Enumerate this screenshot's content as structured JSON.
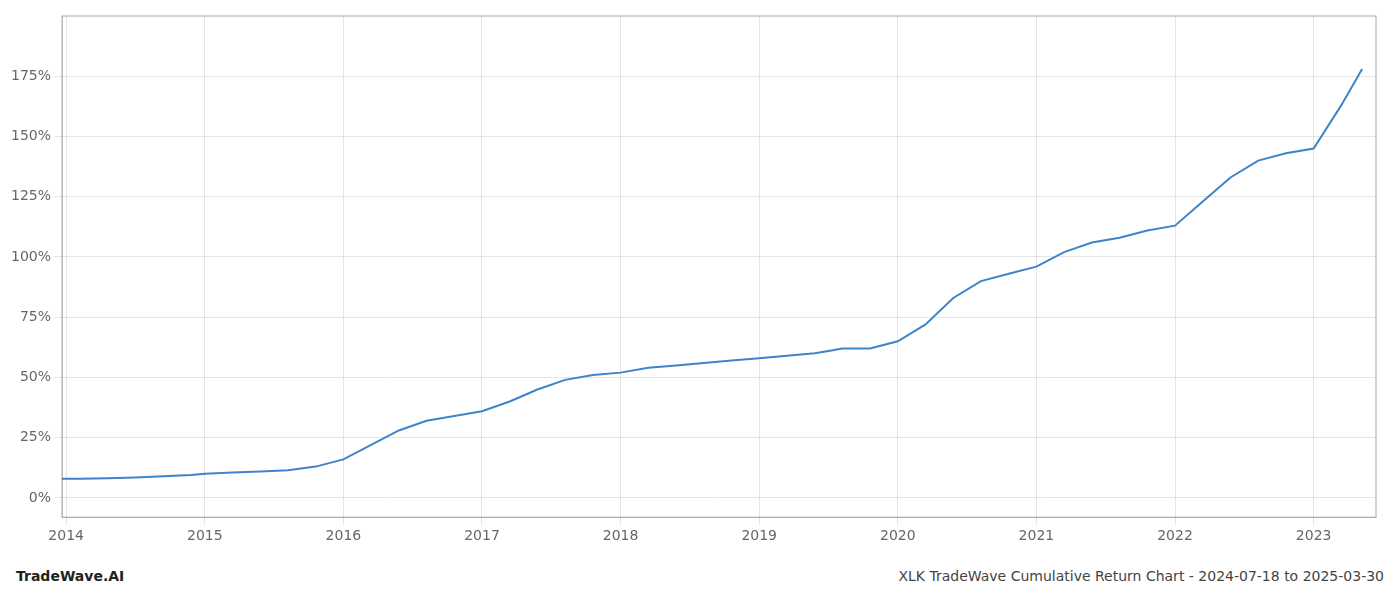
{
  "chart_data": {
    "type": "line",
    "x": [
      2013.97,
      2014.1,
      2014.3,
      2014.5,
      2014.7,
      2014.9,
      2015.0,
      2015.2,
      2015.4,
      2015.6,
      2015.8,
      2016.0,
      2016.2,
      2016.4,
      2016.6,
      2016.8,
      2017.0,
      2017.2,
      2017.4,
      2017.6,
      2017.8,
      2018.0,
      2018.2,
      2018.4,
      2018.6,
      2018.8,
      2019.0,
      2019.2,
      2019.4,
      2019.5,
      2019.6,
      2019.8,
      2020.0,
      2020.2,
      2020.4,
      2020.6,
      2020.8,
      2021.0,
      2021.2,
      2021.4,
      2021.6,
      2021.8,
      2022.0,
      2022.2,
      2022.4,
      2022.6,
      2022.8,
      2023.0,
      2023.2,
      2023.35
    ],
    "values": [
      8,
      8,
      8.2,
      8.5,
      9,
      9.5,
      10,
      10.5,
      11,
      11.5,
      13,
      16,
      22,
      28,
      32,
      34,
      36,
      40,
      45,
      49,
      51,
      52,
      54,
      55,
      56,
      57,
      58,
      59,
      60,
      61,
      62,
      62,
      65,
      72,
      83,
      90,
      93,
      96,
      102,
      106,
      108,
      111,
      113,
      123,
      133,
      140,
      143,
      145,
      163,
      178
    ],
    "color": "#3d85c8",
    "xlim": [
      2013.97,
      2023.45
    ],
    "xticks": [
      2014,
      2015,
      2016,
      2017,
      2018,
      2019,
      2020,
      2021,
      2022,
      2023
    ],
    "ylim": [
      -8,
      200
    ],
    "yticks": [
      {
        "value": 0,
        "label": "0%"
      },
      {
        "value": 25,
        "label": "25%"
      },
      {
        "value": 50,
        "label": "50%"
      },
      {
        "value": 75,
        "label": "75%"
      },
      {
        "value": 100,
        "label": "100%"
      },
      {
        "value": 125,
        "label": "125%"
      },
      {
        "value": 150,
        "label": "150%"
      },
      {
        "value": 175,
        "label": "175%"
      }
    ],
    "grid": true,
    "annotations": [
      "TradeWave.AI",
      "XLK TradeWave Cumulative Return Chart - 2024-07-18 to 2025-03-30"
    ]
  }
}
